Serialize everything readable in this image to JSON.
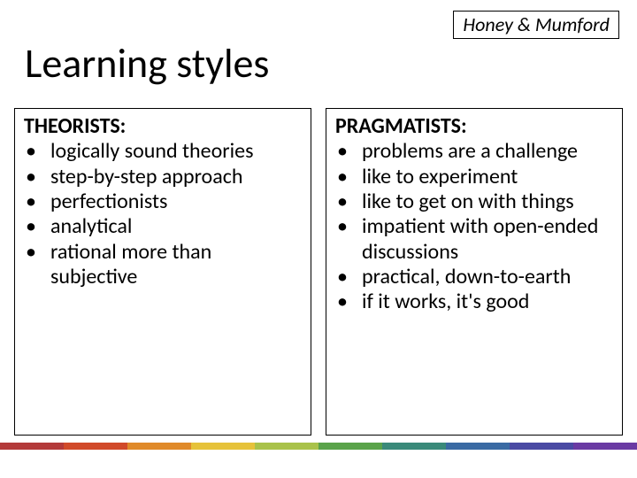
{
  "tag": "Honey & Mumford",
  "title": "Learning styles",
  "columns": [
    {
      "heading": "THEORISTS:",
      "items": [
        "logically sound theories",
        "step-by-step approach",
        "perfectionists",
        "analytical",
        "rational more than subjective"
      ]
    },
    {
      "heading": "PRAGMATISTS:",
      "items": [
        "problems are a challenge",
        "like to experiment",
        "like to get on with things",
        "impatient with open-ended discussions",
        "practical, down-to-earth",
        "if it works, it's good"
      ]
    }
  ],
  "stripe_colors": [
    "#b33a3a",
    "#d14a2a",
    "#e08a2a",
    "#e6c23a",
    "#a9c24a",
    "#5aa34a",
    "#3a8a7a",
    "#3a6aa3",
    "#4a4aa3",
    "#6a3aa3"
  ]
}
